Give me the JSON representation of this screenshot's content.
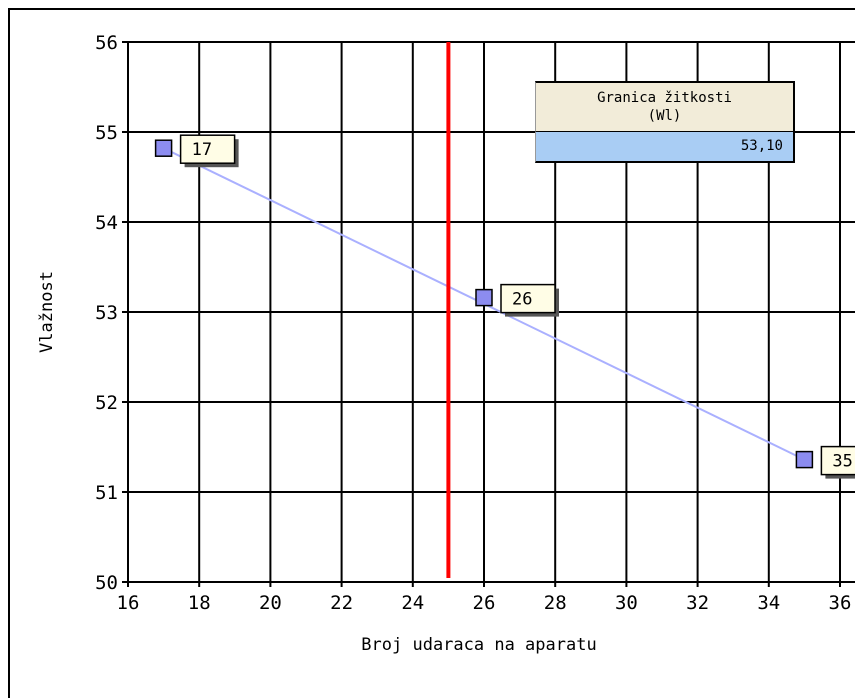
{
  "chart_data": {
    "type": "scatter",
    "xlabel": "Broj udaraca na aparatu",
    "ylabel": "Vlažnost",
    "xlim": [
      16,
      36
    ],
    "ylim": [
      50,
      56
    ],
    "x_ticks": [
      "16",
      "18",
      "20",
      "22",
      "24",
      "26",
      "28",
      "30",
      "32",
      "34",
      "36"
    ],
    "y_ticks": [
      "50",
      "51",
      "52",
      "53",
      "54",
      "55",
      "56"
    ],
    "grid": true,
    "points": [
      {
        "x": 17,
        "y": 54.82,
        "label": "17"
      },
      {
        "x": 26,
        "y": 53.16,
        "label": "26"
      },
      {
        "x": 35,
        "y": 51.36,
        "label": "35"
      }
    ],
    "trend_line": {
      "x": [
        17,
        35
      ],
      "y": [
        54.82,
        51.36
      ],
      "color": "#aab0ff"
    },
    "reference_line": {
      "x": 25,
      "color": "#ff0000"
    },
    "point_color": "#8c8cf0",
    "annotation": {
      "title": "Granica žitkosti\n(Wl)",
      "value": "53,10"
    }
  }
}
